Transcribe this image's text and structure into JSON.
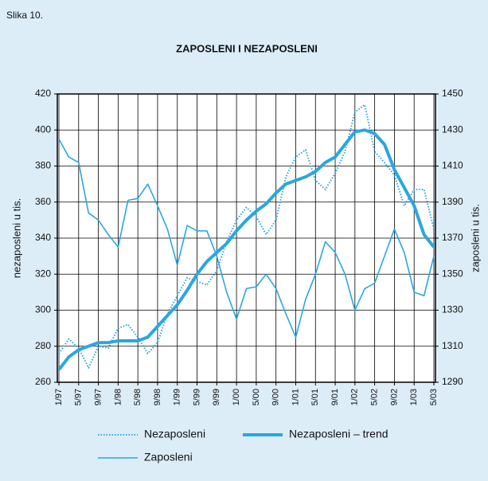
{
  "figure_label": "Slika 10.",
  "chart_data": {
    "type": "line",
    "title": "ZAPOSLENI I NEZAPOSLENI",
    "ylabel": "nezaposleni u tis.",
    "y2label": "zaposleni u tis.",
    "categories": [
      "1/97",
      null,
      "5/97",
      null,
      "9/97",
      null,
      "1/98",
      null,
      "5/98",
      null,
      "9/98",
      null,
      "1/99",
      null,
      "5/99",
      null,
      "9/99",
      null,
      "1/00",
      null,
      "5/00",
      null,
      "9/00",
      null,
      "1/01",
      null,
      "5/01",
      null,
      "9/01",
      null,
      "1/02",
      null,
      "5/02",
      null,
      "9/02",
      null,
      "1/03",
      null,
      "5/03"
    ],
    "ylim": [
      260,
      420
    ],
    "yticks": [
      260,
      280,
      300,
      320,
      340,
      360,
      380,
      400,
      420
    ],
    "y2lim": [
      1290,
      1450
    ],
    "y2ticks": [
      1290,
      1310,
      1330,
      1350,
      1370,
      1390,
      1410,
      1430,
      1450
    ],
    "grid": true,
    "series": [
      {
        "name": "Nezaposleni",
        "color": "#2aa7df",
        "style": "dotted",
        "values": [
          276,
          284,
          279,
          268,
          280,
          279,
          290,
          292,
          285,
          276,
          282,
          298,
          308,
          318,
          316,
          314,
          322,
          338,
          350,
          357,
          352,
          342,
          350,
          374,
          385,
          389,
          372,
          367,
          376,
          388,
          410,
          414,
          388,
          382,
          375,
          358,
          367,
          367,
          345
        ]
      },
      {
        "name": "Nezaposleni – trend",
        "color": "#2aa7df",
        "style": "thick",
        "values": [
          267,
          274,
          278,
          280,
          282,
          282,
          283,
          283,
          283,
          285,
          291,
          297,
          303,
          311,
          320,
          327,
          332,
          337,
          344,
          350,
          355,
          359,
          365,
          370,
          372,
          374,
          377,
          382,
          385,
          392,
          399,
          400,
          398,
          392,
          378,
          368,
          358,
          342,
          335
        ]
      },
      {
        "name": "Zaposleni",
        "color": "#2aa7df",
        "style": "solid",
        "axis": "y2",
        "values": [
          1425,
          1415,
          1412,
          1384,
          1380,
          1372,
          1365,
          1391,
          1392,
          1400,
          1388,
          1375,
          1355,
          1377,
          1374,
          1374,
          1360,
          1340,
          1325,
          1342,
          1343,
          1350,
          1342,
          1328,
          1315,
          1336,
          1350,
          1368,
          1362,
          1350,
          1330,
          1342,
          1345,
          1360,
          1375,
          1362,
          1340,
          1338,
          1360
        ]
      }
    ]
  }
}
